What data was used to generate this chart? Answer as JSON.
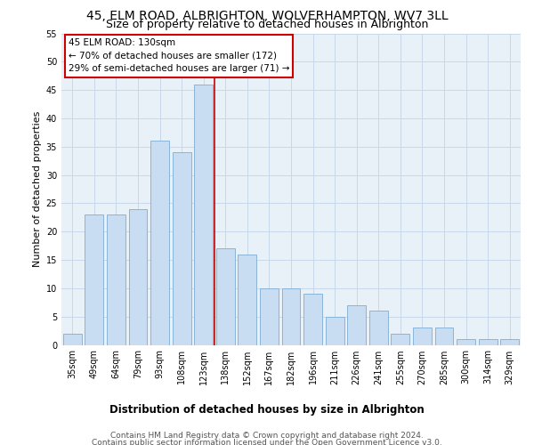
{
  "title": "45, ELM ROAD, ALBRIGHTON, WOLVERHAMPTON, WV7 3LL",
  "subtitle": "Size of property relative to detached houses in Albrighton",
  "xlabel": "Distribution of detached houses by size in Albrighton",
  "ylabel": "Number of detached properties",
  "categories": [
    "35sqm",
    "49sqm",
    "64sqm",
    "79sqm",
    "93sqm",
    "108sqm",
    "123sqm",
    "138sqm",
    "152sqm",
    "167sqm",
    "182sqm",
    "196sqm",
    "211sqm",
    "226sqm",
    "241sqm",
    "255sqm",
    "270sqm",
    "285sqm",
    "300sqm",
    "314sqm",
    "329sqm"
  ],
  "values": [
    2,
    23,
    23,
    24,
    36,
    34,
    46,
    17,
    16,
    10,
    10,
    9,
    5,
    7,
    6,
    2,
    3,
    3,
    1,
    1,
    1
  ],
  "bar_color": "#c9ddf2",
  "bar_edge_color": "#8ab4d8",
  "reference_line_color": "#cc0000",
  "annotation_title": "45 ELM ROAD: 130sqm",
  "annotation_line1": "← 70% of detached houses are smaller (172)",
  "annotation_line2": "29% of semi-detached houses are larger (71) →",
  "annotation_box_color": "#ffffff",
  "annotation_box_edge_color": "#cc0000",
  "ylim": [
    0,
    55
  ],
  "yticks": [
    0,
    5,
    10,
    15,
    20,
    25,
    30,
    35,
    40,
    45,
    50,
    55
  ],
  "footer_line1": "Contains HM Land Registry data © Crown copyright and database right 2024.",
  "footer_line2": "Contains public sector information licensed under the Open Government Licence v3.0.",
  "bg_color": "#ffffff",
  "plot_bg_color": "#e8f0f8",
  "grid_color": "#c8d8e8",
  "title_fontsize": 10,
  "subtitle_fontsize": 9,
  "xlabel_fontsize": 8.5,
  "ylabel_fontsize": 8,
  "tick_fontsize": 7,
  "annotation_fontsize": 7.5,
  "footer_fontsize": 6.5
}
